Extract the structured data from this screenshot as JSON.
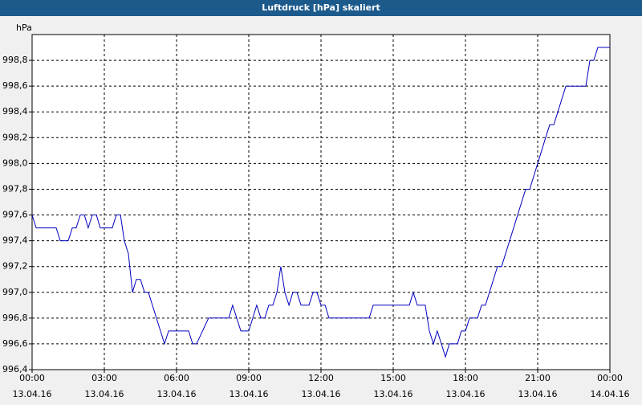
{
  "window": {
    "title": "Luftdruck [hPa] skaliert"
  },
  "chart_data": {
    "type": "line",
    "title": "Luftdruck [hPa] skaliert",
    "ylabel": "hPa",
    "xlabel": "",
    "ylim": [
      996.4,
      999.0
    ],
    "xlim": [
      0,
      24
    ],
    "grid": true,
    "yticks": [
      {
        "v": 996.4,
        "label": "996,4"
      },
      {
        "v": 996.6,
        "label": "996,6"
      },
      {
        "v": 996.8,
        "label": "996,8"
      },
      {
        "v": 997.0,
        "label": "997,0"
      },
      {
        "v": 997.2,
        "label": "997,2"
      },
      {
        "v": 997.4,
        "label": "997,4"
      },
      {
        "v": 997.6,
        "label": "997,6"
      },
      {
        "v": 997.8,
        "label": "997,8"
      },
      {
        "v": 998.0,
        "label": "998,0"
      },
      {
        "v": 998.2,
        "label": "998,2"
      },
      {
        "v": 998.4,
        "label": "998,4"
      },
      {
        "v": 998.6,
        "label": "998,6"
      },
      {
        "v": 998.8,
        "label": "998,8"
      }
    ],
    "xticks": [
      {
        "v": 0,
        "time": "00:00",
        "date": "13.04.16"
      },
      {
        "v": 3,
        "time": "03:00",
        "date": "13.04.16"
      },
      {
        "v": 6,
        "time": "06:00",
        "date": "13.04.16"
      },
      {
        "v": 9,
        "time": "09:00",
        "date": "13.04.16"
      },
      {
        "v": 12,
        "time": "12:00",
        "date": "13.04.16"
      },
      {
        "v": 15,
        "time": "15:00",
        "date": "13.04.16"
      },
      {
        "v": 18,
        "time": "18:00",
        "date": "13.04.16"
      },
      {
        "v": 21,
        "time": "21:00",
        "date": "13.04.16"
      },
      {
        "v": 24,
        "time": "00:00",
        "date": "14.04.16"
      }
    ],
    "series": [
      {
        "color": "#0000c0",
        "points": [
          [
            0.0,
            997.6
          ],
          [
            0.17,
            997.5
          ],
          [
            0.5,
            997.5
          ],
          [
            0.75,
            997.5
          ],
          [
            1.0,
            997.5
          ],
          [
            1.17,
            997.4
          ],
          [
            1.5,
            997.4
          ],
          [
            1.67,
            997.5
          ],
          [
            1.83,
            997.5
          ],
          [
            2.0,
            997.6
          ],
          [
            2.17,
            997.6
          ],
          [
            2.33,
            997.5
          ],
          [
            2.5,
            997.6
          ],
          [
            2.67,
            997.6
          ],
          [
            2.83,
            997.5
          ],
          [
            3.33,
            997.5
          ],
          [
            3.5,
            997.6
          ],
          [
            3.67,
            997.6
          ],
          [
            3.83,
            997.4
          ],
          [
            4.0,
            997.3
          ],
          [
            4.17,
            997.0
          ],
          [
            4.33,
            997.1
          ],
          [
            4.5,
            997.1
          ],
          [
            4.67,
            997.0
          ],
          [
            4.83,
            997.0
          ],
          [
            5.5,
            996.6
          ],
          [
            5.67,
            996.7
          ],
          [
            6.5,
            996.7
          ],
          [
            6.67,
            996.6
          ],
          [
            6.83,
            996.6
          ],
          [
            7.33,
            996.8
          ],
          [
            8.17,
            996.8
          ],
          [
            8.33,
            996.9
          ],
          [
            8.67,
            996.7
          ],
          [
            9.0,
            996.7
          ],
          [
            9.33,
            996.9
          ],
          [
            9.5,
            996.8
          ],
          [
            9.67,
            996.8
          ],
          [
            9.83,
            996.9
          ],
          [
            10.0,
            996.9
          ],
          [
            10.17,
            997.0
          ],
          [
            10.33,
            997.2
          ],
          [
            10.5,
            997.0
          ],
          [
            10.67,
            996.9
          ],
          [
            10.83,
            997.0
          ],
          [
            11.0,
            997.0
          ],
          [
            11.17,
            996.9
          ],
          [
            11.5,
            996.9
          ],
          [
            11.67,
            997.0
          ],
          [
            11.83,
            997.0
          ],
          [
            12.0,
            996.9
          ],
          [
            12.17,
            996.9
          ],
          [
            12.33,
            996.8
          ],
          [
            14.0,
            996.8
          ],
          [
            14.17,
            996.9
          ],
          [
            15.67,
            996.9
          ],
          [
            15.83,
            997.0
          ],
          [
            16.0,
            996.9
          ],
          [
            16.33,
            996.9
          ],
          [
            16.5,
            996.7
          ],
          [
            16.67,
            996.6
          ],
          [
            16.83,
            996.7
          ],
          [
            17.17,
            996.5
          ],
          [
            17.33,
            996.6
          ],
          [
            17.67,
            996.6
          ],
          [
            17.83,
            996.7
          ],
          [
            18.0,
            996.7
          ],
          [
            18.17,
            996.8
          ],
          [
            18.5,
            996.8
          ],
          [
            18.67,
            996.9
          ],
          [
            18.83,
            996.9
          ],
          [
            19.33,
            997.2
          ],
          [
            19.5,
            997.2
          ],
          [
            20.5,
            997.8
          ],
          [
            20.67,
            997.8
          ],
          [
            21.33,
            998.2
          ],
          [
            21.5,
            998.3
          ],
          [
            21.67,
            998.3
          ],
          [
            22.17,
            998.6
          ],
          [
            23.0,
            998.6
          ],
          [
            23.17,
            998.8
          ],
          [
            23.33,
            998.8
          ],
          [
            23.5,
            998.9
          ],
          [
            24.0,
            998.9
          ]
        ]
      }
    ]
  }
}
